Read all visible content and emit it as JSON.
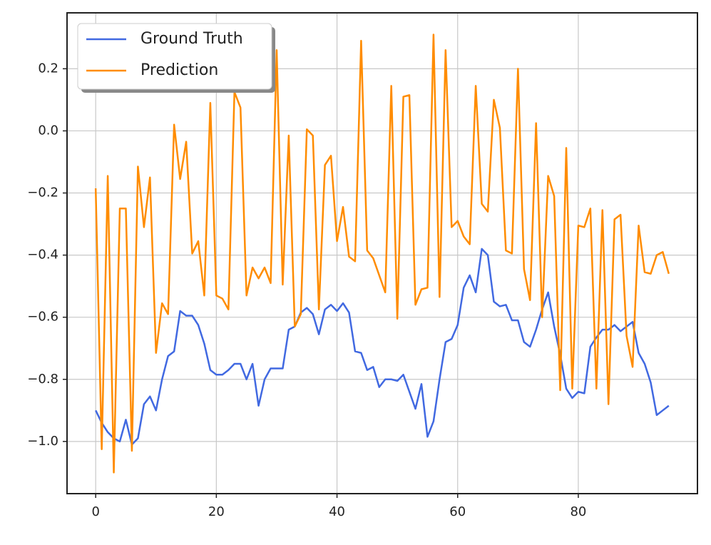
{
  "chart_data": {
    "type": "line",
    "x": [
      0,
      1,
      2,
      3,
      4,
      5,
      6,
      7,
      8,
      9,
      10,
      11,
      12,
      13,
      14,
      15,
      16,
      17,
      18,
      19,
      20,
      21,
      22,
      23,
      24,
      25,
      26,
      27,
      28,
      29,
      30,
      31,
      32,
      33,
      34,
      35,
      36,
      37,
      38,
      39,
      40,
      41,
      42,
      43,
      44,
      45,
      46,
      47,
      48,
      49,
      50,
      51,
      52,
      53,
      54,
      55,
      56,
      57,
      58,
      59,
      60,
      61,
      62,
      63,
      64,
      65,
      66,
      67,
      68,
      69,
      70,
      71,
      72,
      73,
      74,
      75,
      76,
      77,
      78,
      79,
      80,
      81,
      82,
      83,
      84,
      85,
      86,
      87,
      88,
      89,
      90,
      91,
      92,
      93,
      94,
      95
    ],
    "series": [
      {
        "name": "Ground Truth",
        "color": "#4169e1",
        "values": [
          -0.9,
          -0.94,
          -0.97,
          -0.99,
          -1.0,
          -0.93,
          -1.01,
          -0.99,
          -0.88,
          -0.855,
          -0.9,
          -0.8,
          -0.725,
          -0.71,
          -0.58,
          -0.595,
          -0.595,
          -0.625,
          -0.685,
          -0.77,
          -0.785,
          -0.785,
          -0.77,
          -0.75,
          -0.75,
          -0.8,
          -0.75,
          -0.885,
          -0.8,
          -0.765,
          -0.765,
          -0.765,
          -0.64,
          -0.63,
          -0.585,
          -0.57,
          -0.59,
          -0.655,
          -0.575,
          -0.56,
          -0.58,
          -0.555,
          -0.585,
          -0.71,
          -0.715,
          -0.77,
          -0.76,
          -0.825,
          -0.8,
          -0.8,
          -0.805,
          -0.785,
          -0.84,
          -0.895,
          -0.815,
          -0.985,
          -0.935,
          -0.8,
          -0.68,
          -0.67,
          -0.625,
          -0.505,
          -0.465,
          -0.52,
          -0.38,
          -0.4,
          -0.55,
          -0.565,
          -0.56,
          -0.61,
          -0.61,
          -0.68,
          -0.695,
          -0.64,
          -0.575,
          -0.52,
          -0.63,
          -0.72,
          -0.83,
          -0.86,
          -0.84,
          -0.845,
          -0.695,
          -0.665,
          -0.64,
          -0.64,
          -0.625,
          -0.645,
          -0.63,
          -0.615,
          -0.715,
          -0.75,
          -0.81,
          -0.915,
          -0.9,
          -0.885
        ]
      },
      {
        "name": "Prediction",
        "color": "#ff8c00",
        "values": [
          -0.185,
          -1.025,
          -0.145,
          -1.1,
          -0.25,
          -0.25,
          -1.03,
          -0.115,
          -0.31,
          -0.15,
          -0.715,
          -0.555,
          -0.59,
          0.02,
          -0.155,
          -0.035,
          -0.395,
          -0.355,
          -0.53,
          0.09,
          -0.53,
          -0.54,
          -0.575,
          0.125,
          0.075,
          -0.53,
          -0.44,
          -0.475,
          -0.44,
          -0.49,
          0.26,
          -0.495,
          -0.015,
          -0.63,
          -0.59,
          0.005,
          -0.015,
          -0.575,
          -0.11,
          -0.08,
          -0.355,
          -0.245,
          -0.405,
          -0.42,
          0.29,
          -0.385,
          -0.41,
          -0.465,
          -0.52,
          0.145,
          -0.605,
          0.11,
          0.115,
          -0.56,
          -0.51,
          -0.505,
          0.31,
          -0.535,
          0.26,
          -0.31,
          -0.29,
          -0.34,
          -0.365,
          0.145,
          -0.235,
          -0.26,
          0.1,
          0.01,
          -0.385,
          -0.395,
          0.2,
          -0.445,
          -0.545,
          0.025,
          -0.6,
          -0.145,
          -0.21,
          -0.835,
          -0.055,
          -0.83,
          -0.305,
          -0.31,
          -0.25,
          -0.83,
          -0.255,
          -0.88,
          -0.285,
          -0.27,
          -0.66,
          -0.76,
          -0.305,
          -0.455,
          -0.46,
          -0.4,
          -0.39,
          -0.46
        ]
      }
    ],
    "xlim": [
      -4.75,
      99.75
    ],
    "xticks": [
      0,
      20,
      40,
      60,
      80
    ],
    "ylim": [
      -1.168,
      0.38
    ],
    "yticks": [
      {
        "value": -1.0,
        "label": "−1.0"
      },
      {
        "value": -0.8,
        "label": "−0.8"
      },
      {
        "value": -0.6,
        "label": "−0.6"
      },
      {
        "value": -0.4,
        "label": "−0.4"
      },
      {
        "value": -0.2,
        "label": "−0.2"
      },
      {
        "value": 0.0,
        "label": "0.0"
      },
      0.2
    ],
    "grid": true,
    "legend": "upper-left"
  }
}
